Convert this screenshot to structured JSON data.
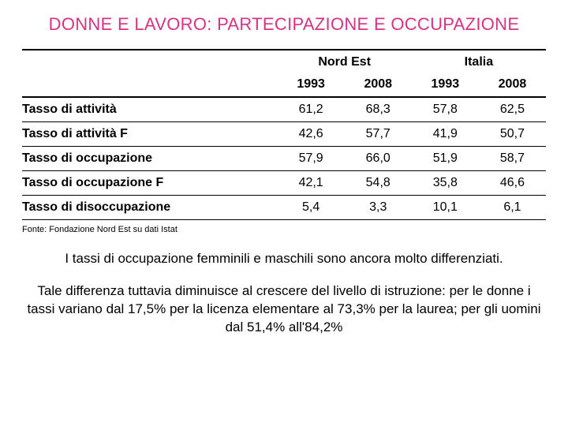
{
  "title": "DONNE E LAVORO: PARTECIPAZIONE E OCCUPAZIONE",
  "title_color": "#d63384",
  "background_color": "#ffffff",
  "table": {
    "type": "table",
    "group_headers": [
      "Nord Est",
      "Italia"
    ],
    "year_headers": [
      "1993",
      "2008",
      "1993",
      "2008"
    ],
    "row_labels": [
      "Tasso di attività",
      "Tasso di attività F",
      "Tasso di occupazione",
      "Tasso di occupazione F",
      "Tasso di disoccupazione"
    ],
    "rows": [
      [
        "61,2",
        "68,3",
        "57,8",
        "62,5"
      ],
      [
        "42,6",
        "57,7",
        "41,9",
        "50,7"
      ],
      [
        "57,9",
        "66,0",
        "51,9",
        "58,7"
      ],
      [
        "42,1",
        "54,8",
        "35,8",
        "46,6"
      ],
      [
        "5,4",
        "3,3",
        "10,1",
        "6,1"
      ]
    ],
    "border_color": "#000000",
    "header_fontweight": "bold",
    "rowlabel_fontweight": "bold",
    "cell_fontsize": 16,
    "column_align": [
      "left",
      "center",
      "center",
      "center",
      "center"
    ]
  },
  "source": "Fonte: Fondazione Nord Est su dati Istat",
  "paragraph1": "I tassi di occupazione femminili e maschili sono ancora molto differenziati.",
  "paragraph2": "Tale differenza tuttavia diminuisce al crescere del livello di istruzione: per le donne i tassi variano dal 17,5% per la licenza elementare al 73,3% per la laurea; per gli uomini dal 51,4% all'84,2%"
}
